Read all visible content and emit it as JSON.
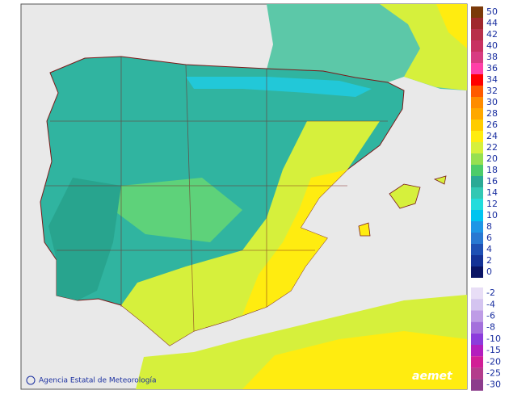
{
  "map": {
    "credit": "Agencia Estatal de Meteorología",
    "logo": "aemet",
    "legend_positive": [
      {
        "value": 50,
        "color": "#7b3a0a"
      },
      {
        "value": 44,
        "color": "#a0282d"
      },
      {
        "value": 42,
        "color": "#b8304a"
      },
      {
        "value": 40,
        "color": "#c83262"
      },
      {
        "value": 38,
        "color": "#d83c82"
      },
      {
        "value": 36,
        "color": "#ff40a8"
      },
      {
        "value": 34,
        "color": "#ff0000"
      },
      {
        "value": 32,
        "color": "#ff5a00"
      },
      {
        "value": 30,
        "color": "#ff8c00"
      },
      {
        "value": 28,
        "color": "#ffa800"
      },
      {
        "value": 26,
        "color": "#ffcc00"
      },
      {
        "value": 24,
        "color": "#ffec10"
      },
      {
        "value": 22,
        "color": "#d6f03c"
      },
      {
        "value": 20,
        "color": "#96e050"
      },
      {
        "value": 18,
        "color": "#4ccc6a"
      },
      {
        "value": 16,
        "color": "#2aaa96"
      },
      {
        "value": 14,
        "color": "#32c8b4"
      },
      {
        "value": 12,
        "color": "#22dcdc"
      },
      {
        "value": 10,
        "color": "#00c4f0"
      },
      {
        "value": 8,
        "color": "#1e96e6"
      },
      {
        "value": 6,
        "color": "#2878d2"
      },
      {
        "value": 4,
        "color": "#1e50b4"
      },
      {
        "value": 2,
        "color": "#143296"
      },
      {
        "value": 0,
        "color": "#0a1464"
      }
    ],
    "legend_negative": [
      {
        "value": -2,
        "color": "#e8def6"
      },
      {
        "value": -4,
        "color": "#d4c4f0"
      },
      {
        "value": -6,
        "color": "#be9ce6"
      },
      {
        "value": -8,
        "color": "#a470dc"
      },
      {
        "value": -10,
        "color": "#8c3cdc"
      },
      {
        "value": -15,
        "color": "#b41ebe"
      },
      {
        "value": -20,
        "color": "#d21e96"
      },
      {
        "value": -25,
        "color": "#b43c8c"
      },
      {
        "value": -30,
        "color": "#8c3c8c"
      }
    ]
  }
}
